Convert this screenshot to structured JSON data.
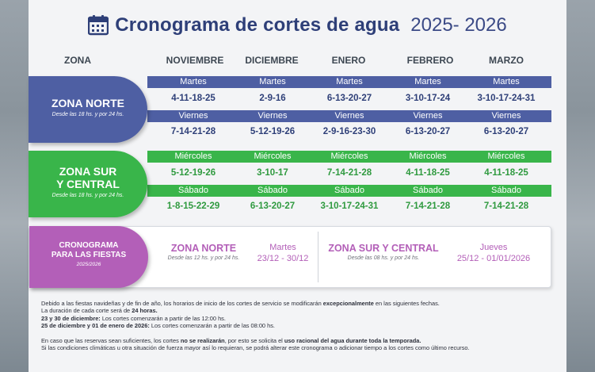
{
  "title": {
    "main": "Cronograma de cortes de agua",
    "year": "2025- 2026"
  },
  "columns": [
    "ZONA",
    "NOVIEMBRE",
    "DICIEMBRE",
    "ENERO",
    "FEBRERO",
    "MARZO"
  ],
  "norte": {
    "name": "ZONA NORTE",
    "sub": "Desde las 18 hs. y por 24 hs.",
    "day1": "Martes",
    "row1": [
      "4-11-18-25",
      "2-9-16",
      "6-13-20-27",
      "3-10-17-24",
      "3-10-17-24-31"
    ],
    "day2": "Viernes",
    "row2": [
      "7-14-21-28",
      "5-12-19-26",
      "2-9-16-23-30",
      "6-13-20-27",
      "6-13-20-27"
    ]
  },
  "sur": {
    "name_line1": "ZONA SUR",
    "name_line2": "Y CENTRAL",
    "sub": "Desde las 18 hs. y por 24 hs.",
    "day1": "Miércoles",
    "row1": [
      "5-12-19-26",
      "3-10-17",
      "7-14-21-28",
      "4-11-18-25",
      "4-11-18-25"
    ],
    "day2": "Sábado",
    "row2": [
      "1-8-15-22-29",
      "6-13-20-27",
      "3-10-17-24-31",
      "7-14-21-28",
      "7-14-21-28"
    ]
  },
  "fiestas": {
    "label_line1": "CRONOGRAMA",
    "label_line2": "PARA LAS FIESTAS",
    "label_year": "2025/2026",
    "norte_title": "ZONA NORTE",
    "norte_sub": "Desde las 12 hs. y por 24 hs.",
    "norte_day": "Martes",
    "norte_dates": "23/12 - 30/12",
    "sur_title": "ZONA SUR Y CENTRAL",
    "sur_sub": "Desde las 08 hs. y por 24 hs.",
    "sur_day": "Jueves",
    "sur_dates": "25/12 - 01/01/2026"
  },
  "notes": {
    "p1a": "Debido a las fiestas navideñas y de fin de año, los horarios de inicio de los cortes de servicio se modificarán ",
    "p1b": "excepcionalmente",
    "p1c": " en las siguientes fechas.",
    "p2a": "La duración de cada corte será de ",
    "p2b": "24 horas.",
    "p3a": "23 y 30 de diciembre:",
    "p3b": " Los cortes comenzarán a partir de las 12:00 hs.",
    "p4a": "25 de diciembre y 01 de enero de 2026:",
    "p4b": " Los cortes comenzarán a partir de las 08:00 hs.",
    "p5a": "En caso que las reservas sean suficientes, los cortes ",
    "p5b": "no se realizarán",
    "p5c": ", por esto se solicita el ",
    "p5d": "uso racional del agua durante toda la temporada.",
    "p6": "Si las condiciones climáticas u otra situación de fuerza mayor así lo requieran, se podrá alterar este cronograma o adicionar tiempo a los cortes como último recurso."
  },
  "colors": {
    "navy": "#2e3f78",
    "norte_blue": "#4e5fa3",
    "sur_green": "#39b54a",
    "fiestas_purple": "#b35fb8"
  }
}
